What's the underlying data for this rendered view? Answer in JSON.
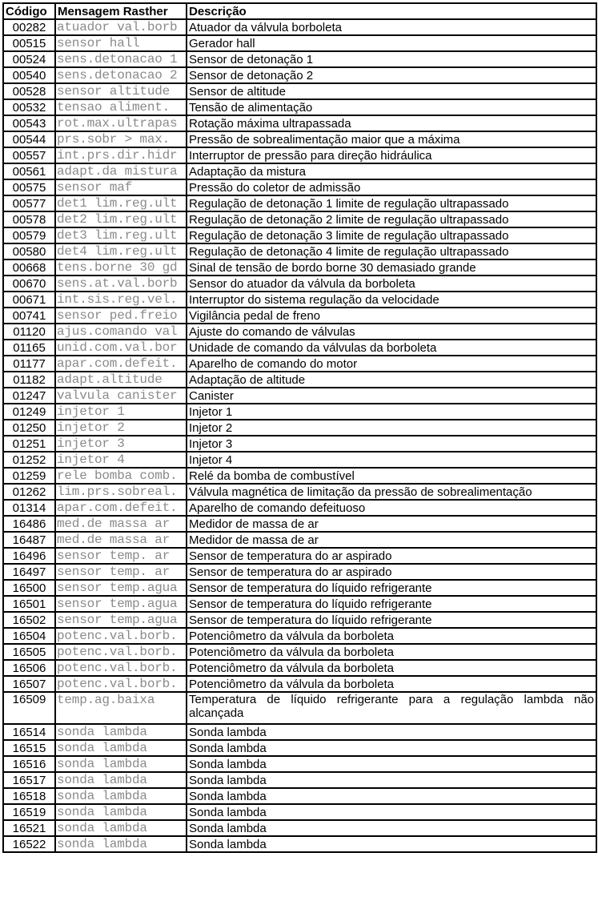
{
  "headers": {
    "code": "Código",
    "message": "Mensagem Rasther",
    "description": "Descrição"
  },
  "rows": [
    {
      "code": "00282",
      "message": "atuador val.borb",
      "description": "Atuador da válvula borboleta"
    },
    {
      "code": "00515",
      "message": "sensor hall",
      "description": "Gerador hall"
    },
    {
      "code": "00524",
      "message": "sens.detonacao 1",
      "description": "Sensor de detonação 1"
    },
    {
      "code": "00540",
      "message": "sens.detonacao 2",
      "description": "Sensor de detonação 2"
    },
    {
      "code": "00528",
      "message": "sensor altitude",
      "description": "Sensor de altitude"
    },
    {
      "code": "00532",
      "message": "tensao aliment.",
      "description": "Tensão de alimentação"
    },
    {
      "code": "00543",
      "message": "rot.max.ultrapas",
      "description": "Rotação máxima ultrapassada"
    },
    {
      "code": "00544",
      "message": "prs.sobr > max.",
      "description": "Pressão de sobrealimentação maior que a máxima"
    },
    {
      "code": "00557",
      "message": "int.prs.dir.hidr",
      "description": "Interruptor de pressão para direção hidráulica"
    },
    {
      "code": "00561",
      "message": "adapt.da mistura",
      "description": "Adaptação da mistura"
    },
    {
      "code": "00575",
      "message": "sensor maf",
      "description": "Pressão do coletor de admissão"
    },
    {
      "code": "00577",
      "message": "det1 lim.reg.ult",
      "description": "Regulação de detonação 1 limite de regulação ultrapassado"
    },
    {
      "code": "00578",
      "message": "det2 lim.reg.ult",
      "description": "Regulação de detonação 2 limite de regulação ultrapassado"
    },
    {
      "code": "00579",
      "message": "det3 lim.reg.ult",
      "description": "Regulação de detonação 3 limite de regulação ultrapassado"
    },
    {
      "code": "00580",
      "message": "det4 lim.reg.ult",
      "description": "Regulação de detonação 4 limite de regulação ultrapassado"
    },
    {
      "code": "00668",
      "message": "tens.borne 30 gd",
      "description": "Sinal de tensão de bordo borne 30 demasiado grande"
    },
    {
      "code": "00670",
      "message": "sens.at.val.borb",
      "description": "Sensor do atuador da válvula da borboleta"
    },
    {
      "code": "00671",
      "message": "int.sis.reg.vel.",
      "description": "Interruptor do sistema regulação da velocidade"
    },
    {
      "code": "00741",
      "message": "sensor ped.freio",
      "description": "Vigilância pedal de freno"
    },
    {
      "code": "01120",
      "message": "ajus.comando val",
      "description": "Ajuste do comando de válvulas"
    },
    {
      "code": "01165",
      "message": "unid.com.val.bor",
      "description": "Unidade de comando da válvulas da borboleta"
    },
    {
      "code": "01177",
      "message": "apar.com.defeit.",
      "description": "Aparelho de comando do motor"
    },
    {
      "code": "01182",
      "message": "adapt.altitude",
      "description": "Adaptação de altitude"
    },
    {
      "code": "01247",
      "message": "valvula canister",
      "description": "Canister"
    },
    {
      "code": "01249",
      "message": "injetor 1",
      "description": "Injetor 1"
    },
    {
      "code": "01250",
      "message": "injetor 2",
      "description": "Injetor 2"
    },
    {
      "code": "01251",
      "message": "injetor 3",
      "description": "Injetor 3"
    },
    {
      "code": "01252",
      "message": "injetor 4",
      "description": "Injetor 4"
    },
    {
      "code": "01259",
      "message": "rele bomba comb.",
      "description": "Relé da bomba de combustível"
    },
    {
      "code": "01262",
      "message": "lim.prs.sobreal.",
      "description": "Válvula magnética de limitação da pressão de sobrealimentação"
    },
    {
      "code": "01314",
      "message": "apar.com.defeit.",
      "description": "Aparelho de comando defeituoso"
    },
    {
      "code": "16486",
      "message": "med.de massa ar",
      "description": "Medidor de massa de ar"
    },
    {
      "code": "16487",
      "message": "med.de massa ar",
      "description": "Medidor de massa de ar"
    },
    {
      "code": "16496",
      "message": "sensor temp. ar",
      "description": "Sensor de temperatura do ar aspirado"
    },
    {
      "code": "16497",
      "message": "sensor temp. ar",
      "description": "Sensor de temperatura do ar aspirado"
    },
    {
      "code": "16500",
      "message": "sensor temp.agua",
      "description": "Sensor de temperatura do líquido refrigerante"
    },
    {
      "code": "16501",
      "message": "sensor temp.agua",
      "description": "Sensor de temperatura do líquido refrigerante"
    },
    {
      "code": "16502",
      "message": "sensor temp.agua",
      "description": "Sensor de temperatura do líquido refrigerante"
    },
    {
      "code": "16504",
      "message": "potenc.val.borb.",
      "description": "Potenciômetro da válvula da borboleta"
    },
    {
      "code": "16505",
      "message": "potenc.val.borb.",
      "description": "Potenciômetro da válvula da borboleta"
    },
    {
      "code": "16506",
      "message": "potenc.val.borb.",
      "description": "Potenciômetro da válvula da borboleta"
    },
    {
      "code": "16507",
      "message": "potenc.val.borb.",
      "description": "Potenciômetro da válvula da borboleta"
    },
    {
      "code": "16509",
      "message": "temp.ag.baixa",
      "description": "Temperatura de líquido refrigerante para a regulação lambda não alcançada"
    },
    {
      "code": "16514",
      "message": "sonda lambda",
      "description": "Sonda lambda"
    },
    {
      "code": "16515",
      "message": "sonda lambda",
      "description": "Sonda lambda"
    },
    {
      "code": "16516",
      "message": "sonda lambda",
      "description": "Sonda lambda"
    },
    {
      "code": "16517",
      "message": "sonda lambda",
      "description": "Sonda lambda"
    },
    {
      "code": "16518",
      "message": "sonda lambda",
      "description": "Sonda lambda"
    },
    {
      "code": "16519",
      "message": "sonda lambda",
      "description": "Sonda lambda"
    },
    {
      "code": "16521",
      "message": "sonda lambda",
      "description": "Sonda lambda"
    },
    {
      "code": "16522",
      "message": "sonda lambda",
      "description": "Sonda lambda"
    }
  ]
}
